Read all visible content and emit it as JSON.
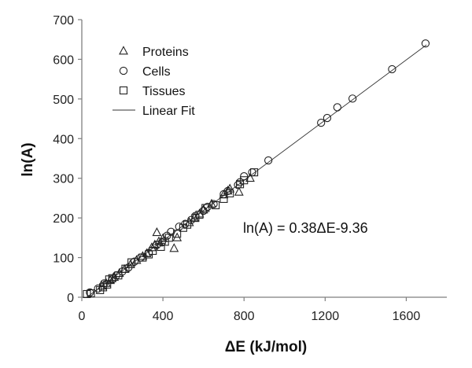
{
  "chart_data": {
    "type": "scatter",
    "xlabel": "ΔE (kJ/mol)",
    "ylabel": "ln(A)",
    "xlim": [
      0,
      1800
    ],
    "ylim": [
      0,
      700
    ],
    "xticks": [
      0,
      400,
      800,
      1200,
      1600
    ],
    "yticks": [
      0,
      100,
      200,
      300,
      400,
      500,
      600,
      700
    ],
    "grid": false,
    "legend_position": "top-left",
    "annotation": "ln(A) = 0.38ΔE-9.36",
    "fit": {
      "name": "Linear Fit",
      "slope": 0.38,
      "intercept": -9.36,
      "x_range": [
        30,
        1700
      ]
    },
    "series": [
      {
        "name": "Proteins",
        "marker": "triangle",
        "points": [
          [
            100,
            28
          ],
          [
            120,
            35
          ],
          [
            140,
            42
          ],
          [
            160,
            50
          ],
          [
            185,
            60
          ],
          [
            210,
            70
          ],
          [
            240,
            82
          ],
          [
            270,
            93
          ],
          [
            300,
            103
          ],
          [
            320,
            110
          ],
          [
            345,
            125
          ],
          [
            360,
            132
          ],
          [
            370,
            163
          ],
          [
            380,
            140
          ],
          [
            400,
            148
          ],
          [
            455,
            123
          ],
          [
            470,
            150
          ],
          [
            530,
            188
          ],
          [
            555,
            200
          ],
          [
            580,
            210
          ],
          [
            600,
            220
          ],
          [
            640,
            235
          ],
          [
            700,
            258
          ],
          [
            720,
            268
          ],
          [
            730,
            273
          ],
          [
            775,
            265
          ],
          [
            830,
            300
          ]
        ]
      },
      {
        "name": "Cells",
        "marker": "circle",
        "points": [
          [
            40,
            12
          ],
          [
            80,
            22
          ],
          [
            110,
            35
          ],
          [
            150,
            45
          ],
          [
            170,
            55
          ],
          [
            200,
            65
          ],
          [
            230,
            75
          ],
          [
            260,
            90
          ],
          [
            290,
            100
          ],
          [
            330,
            112
          ],
          [
            370,
            132
          ],
          [
            395,
            138
          ],
          [
            420,
            155
          ],
          [
            440,
            165
          ],
          [
            480,
            178
          ],
          [
            510,
            185
          ],
          [
            540,
            195
          ],
          [
            560,
            205
          ],
          [
            600,
            218
          ],
          [
            620,
            228
          ],
          [
            650,
            235
          ],
          [
            700,
            260
          ],
          [
            720,
            268
          ],
          [
            770,
            283
          ],
          [
            780,
            290
          ],
          [
            800,
            305
          ],
          [
            840,
            315
          ],
          [
            920,
            345
          ],
          [
            1180,
            440
          ],
          [
            1210,
            452
          ],
          [
            1260,
            479
          ],
          [
            1335,
            501
          ],
          [
            1530,
            575
          ],
          [
            1695,
            640
          ]
        ]
      },
      {
        "name": "Tissues",
        "marker": "square",
        "points": [
          [
            25,
            8
          ],
          [
            45,
            10
          ],
          [
            90,
            18
          ],
          [
            105,
            25
          ],
          [
            125,
            32
          ],
          [
            135,
            45
          ],
          [
            150,
            48
          ],
          [
            180,
            55
          ],
          [
            215,
            72
          ],
          [
            245,
            88
          ],
          [
            300,
            100
          ],
          [
            330,
            108
          ],
          [
            350,
            117
          ],
          [
            390,
            127
          ],
          [
            410,
            140
          ],
          [
            430,
            150
          ],
          [
            470,
            160
          ],
          [
            500,
            175
          ],
          [
            520,
            183
          ],
          [
            560,
            200
          ],
          [
            580,
            208
          ],
          [
            610,
            225
          ],
          [
            660,
            232
          ],
          [
            700,
            248
          ],
          [
            730,
            262
          ],
          [
            780,
            285
          ],
          [
            800,
            295
          ],
          [
            850,
            315
          ]
        ]
      }
    ]
  }
}
